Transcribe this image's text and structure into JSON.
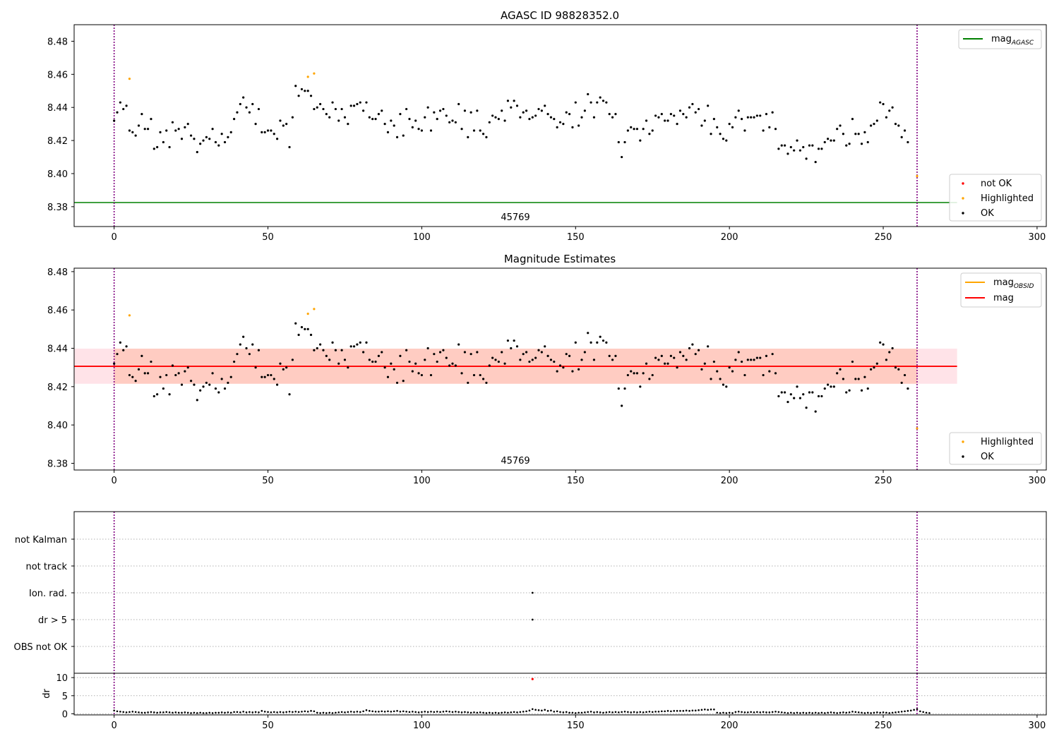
{
  "figure": {
    "colors": {
      "ok": "#000000",
      "highlighted": "#ffa500",
      "not_ok": "#ff0000",
      "agasc_line": "#008000",
      "mag_line": "#ff0000",
      "obsid_line": "#ffa500",
      "band_outer": "#ffc0cb",
      "band_inner": "#ffa07a",
      "obs_boundary": "#800080",
      "grid": "#b0b0b0"
    }
  },
  "chart_data": [
    {
      "type": "scatter",
      "title": "AGASC ID 98828352.0",
      "xlabel": "",
      "ylabel": "",
      "xlim": [
        -13,
        303
      ],
      "ylim": [
        8.368,
        8.49
      ],
      "xticks": [
        0,
        50,
        100,
        150,
        200,
        250,
        300
      ],
      "yticks": [
        8.38,
        8.4,
        8.42,
        8.44,
        8.46,
        8.48
      ],
      "ytick_labels": [
        "8.38",
        "8.40",
        "8.42",
        "8.44",
        "8.46",
        "8.48"
      ],
      "obsid_boundaries": [
        0,
        261
      ],
      "obsid_label": "45769",
      "hlines": [
        {
          "name": "mag_AGASC",
          "y": 8.3825,
          "x_range": [
            -13,
            274
          ]
        }
      ],
      "legend_lines": [
        {
          "base": "mag",
          "sub": "AGASC",
          "color": "#008000"
        }
      ],
      "legend_points": [
        {
          "label": "not OK",
          "color": "#ff0000"
        },
        {
          "label": "Highlighted",
          "color": "#ffa500"
        },
        {
          "label": "OK",
          "color": "#000000"
        }
      ],
      "series": [
        {
          "name": "OK",
          "color": "#000000",
          "key": "ok_mags",
          "extra_x": [],
          "extra_y": []
        },
        {
          "name": "Highlighted",
          "color": "#ffa500",
          "key": null,
          "extra_x": [
            5,
            63,
            65,
            261
          ],
          "extra_y": [
            8.4573,
            8.4585,
            8.4605,
            8.3985
          ]
        }
      ]
    },
    {
      "type": "scatter",
      "title": "Magnitude Estimates",
      "xlabel": "",
      "ylabel": "",
      "xlim": [
        -13,
        303
      ],
      "ylim": [
        8.3765,
        8.4818
      ],
      "xticks": [
        0,
        50,
        100,
        150,
        200,
        250,
        300
      ],
      "yticks": [
        8.38,
        8.4,
        8.42,
        8.44,
        8.46,
        8.48
      ],
      "ytick_labels": [
        "8.38",
        "8.40",
        "8.42",
        "8.44",
        "8.46",
        "8.48"
      ],
      "obsid_boundaries": [
        0,
        261
      ],
      "obsid_label": "45769",
      "hlines": [
        {
          "name": "mag",
          "y": 8.4306,
          "x_range": [
            -13,
            274
          ]
        }
      ],
      "bands": [
        {
          "name": "outer",
          "y_range": [
            8.4215,
            8.4398
          ],
          "x_range": [
            -13,
            274
          ]
        },
        {
          "name": "inner",
          "y_range": [
            8.4215,
            8.4398
          ],
          "x_range": [
            0,
            261
          ]
        }
      ],
      "legend_lines": [
        {
          "base": "mag",
          "sub": "OBSID",
          "color": "#ffa500"
        },
        {
          "base": "mag",
          "sub": "",
          "color": "#ff0000"
        }
      ],
      "legend_points": [
        {
          "label": "Highlighted",
          "color": "#ffa500"
        },
        {
          "label": "OK",
          "color": "#000000"
        }
      ],
      "series": [
        {
          "name": "OK",
          "color": "#000000",
          "key": "ok_mags",
          "extra_x": [],
          "extra_y": []
        },
        {
          "name": "Highlighted",
          "color": "#ffa500",
          "key": null,
          "extra_x": [
            5,
            63,
            65,
            261
          ],
          "extra_y": [
            8.4572,
            8.458,
            8.4605,
            8.3982
          ]
        }
      ]
    },
    {
      "type": "scatter",
      "title": "",
      "xlim": [
        -13,
        303
      ],
      "categories": [
        "not Kalman",
        "not track",
        "Ion. rad.",
        "dr > 5",
        "OBS not OK"
      ],
      "flag_points": [
        {
          "category": "Ion. rad.",
          "x": 136
        },
        {
          "category": "dr > 5",
          "x": 136
        }
      ],
      "obsid_boundaries": [
        0,
        261
      ]
    },
    {
      "type": "scatter",
      "title": "",
      "xlabel": "",
      "ylabel": "dr",
      "xlim": [
        -13,
        303
      ],
      "ylim": [
        -0.3,
        11.2
      ],
      "xticks": [
        0,
        50,
        100,
        150,
        200,
        250,
        300
      ],
      "yticks": [
        0,
        5,
        10
      ],
      "ytick_labels": [
        "0",
        "5",
        "10"
      ],
      "obsid_boundaries": [
        0,
        261
      ],
      "outliers": [
        {
          "x": 136,
          "y": 9.6,
          "color": "#ff0000"
        }
      ]
    }
  ],
  "ok_mags": [
    8.432,
    8.437,
    8.443,
    8.439,
    8.441,
    8.426,
    8.425,
    8.423,
    8.429,
    8.436,
    8.427,
    8.427,
    8.433,
    8.415,
    8.416,
    8.425,
    8.419,
    8.426,
    8.416,
    8.431,
    8.426,
    8.427,
    8.421,
    8.428,
    8.43,
    8.423,
    8.421,
    8.413,
    8.418,
    8.42,
    8.422,
    8.421,
    8.427,
    8.419,
    8.417,
    8.424,
    8.419,
    8.422,
    8.425,
    8.433,
    8.437,
    8.442,
    8.446,
    8.44,
    8.437,
    8.442,
    8.43,
    8.439,
    8.425,
    8.425,
    8.426,
    8.426,
    8.424,
    8.421,
    8.432,
    8.429,
    8.43,
    8.416,
    8.434,
    8.453,
    8.447,
    8.451,
    8.45,
    8.45,
    8.447,
    8.439,
    8.44,
    8.442,
    8.439,
    8.436,
    8.434,
    8.443,
    8.439,
    8.432,
    8.439,
    8.434,
    8.43,
    8.441,
    8.441,
    8.442,
    8.443,
    8.438,
    8.443,
    8.434,
    8.433,
    8.433,
    8.436,
    8.438,
    8.43,
    8.425,
    8.432,
    8.429,
    8.422,
    8.436,
    8.423,
    8.439,
    8.433,
    8.428,
    8.432,
    8.427,
    8.426,
    8.434,
    8.44,
    8.426,
    8.437,
    8.433,
    8.438,
    8.439,
    8.435,
    8.431,
    8.432,
    8.431,
    8.442,
    8.427,
    8.438,
    8.422,
    8.437,
    8.426,
    8.438,
    8.426,
    8.424,
    8.422,
    8.431,
    8.435,
    8.434,
    8.433,
    8.438,
    8.432,
    8.444,
    8.44,
    8.444,
    8.441,
    8.434,
    8.437,
    8.438,
    8.433,
    8.434,
    8.435,
    8.439,
    8.438,
    8.441,
    8.436,
    8.434,
    8.433,
    8.428,
    8.431,
    8.43,
    8.437,
    8.436,
    8.428,
    8.443,
    8.429,
    8.434,
    8.438,
    8.448,
    8.443,
    8.434,
    8.443,
    8.446,
    8.444,
    8.443,
    8.436,
    8.434,
    8.436,
    8.419,
    8.41,
    8.419,
    8.426,
    8.428,
    8.427,
    8.427,
    8.42,
    8.427,
    8.432,
    8.424,
    8.426,
    8.435,
    8.434,
    8.436,
    8.432,
    8.432,
    8.436,
    8.435,
    8.43,
    8.438,
    8.436,
    8.434,
    8.44,
    8.442,
    8.437,
    8.439,
    8.429,
    8.432,
    8.441,
    8.424,
    8.433,
    8.428,
    8.424,
    8.421,
    8.42,
    8.43,
    8.428,
    8.434,
    8.438,
    8.433,
    8.426,
    8.434,
    8.434,
    8.434,
    8.435,
    8.435,
    8.426,
    8.436,
    8.428,
    8.437,
    8.427,
    8.415,
    8.417,
    8.417,
    8.412,
    8.416,
    8.414,
    8.42,
    8.414,
    8.416,
    8.409,
    8.417,
    8.417,
    8.407,
    8.415,
    8.415,
    8.419,
    8.421,
    8.42,
    8.42,
    8.427,
    8.429,
    8.424,
    8.417,
    8.418,
    8.433,
    8.424,
    8.424,
    8.418,
    8.425,
    8.419,
    8.429,
    8.43,
    8.432,
    8.443,
    8.442,
    8.434,
    8.438,
    8.44,
    8.43,
    8.429,
    8.422,
    8.426,
    8.419
  ],
  "dr_values": [
    0.9,
    0.7,
    0.6,
    0.5,
    0.4,
    0.5,
    0.6,
    0.5,
    0.4,
    0.3,
    0.3,
    0.4,
    0.5,
    0.4,
    0.3,
    0.4,
    0.4,
    0.5,
    0.4,
    0.3,
    0.4,
    0.3,
    0.3,
    0.4,
    0.3,
    0.2,
    0.3,
    0.2,
    0.3,
    0.2,
    0.2,
    0.3,
    0.2,
    0.3,
    0.3,
    0.4,
    0.3,
    0.4,
    0.3,
    0.5,
    0.5,
    0.4,
    0.6,
    0.4,
    0.5,
    0.4,
    0.5,
    0.4,
    0.8,
    0.6,
    0.5,
    0.4,
    0.5,
    0.4,
    0.5,
    0.4,
    0.5,
    0.6,
    0.5,
    0.6,
    0.5,
    0.6,
    0.7,
    0.6,
    0.8,
    0.7,
    0.3,
    0.2,
    0.3,
    0.2,
    0.3,
    0.2,
    0.3,
    0.4,
    0.5,
    0.4,
    0.5,
    0.6,
    0.5,
    0.6,
    0.5,
    0.7,
    1.0,
    0.8,
    0.7,
    0.6,
    0.6,
    0.7,
    0.6,
    0.7,
    0.6,
    0.7,
    0.8,
    0.6,
    0.7,
    0.6,
    0.5,
    0.6,
    0.5,
    0.4,
    0.5,
    0.6,
    0.5,
    0.6,
    0.5,
    0.6,
    0.5,
    0.6,
    0.7,
    0.6,
    0.5,
    0.6,
    0.5,
    0.4,
    0.5,
    0.4,
    0.3,
    0.4,
    0.3,
    0.4,
    0.3,
    0.2,
    0.3,
    0.2,
    0.3,
    0.2,
    0.3,
    0.4,
    0.3,
    0.4,
    0.5,
    0.4,
    0.5,
    0.6,
    0.7,
    0.9,
    1.3,
    1.1,
    1.0,
    0.9,
    1.1,
    0.8,
    0.9,
    0.6,
    0.7,
    0.5,
    0.4,
    0.5,
    0.3,
    0.3,
    0.2,
    0.3,
    0.3,
    0.4,
    0.5,
    0.6,
    0.4,
    0.5,
    0.4,
    0.3,
    0.4,
    0.5,
    0.4,
    0.5,
    0.4,
    0.5,
    0.6,
    0.5,
    0.4,
    0.5,
    0.4,
    0.5,
    0.4,
    0.5,
    0.6,
    0.5,
    0.6,
    0.6,
    0.7,
    0.7,
    0.8,
    0.7,
    0.8,
    0.8,
    0.8,
    0.8,
    0.9,
    0.8,
    0.9,
    0.9,
    1.0,
    1.1,
    1.2,
    1.1,
    1.2,
    1.2,
    0.3,
    0.2,
    0.3,
    0.2,
    0.3,
    0.2,
    0.5,
    0.6,
    0.5,
    0.4,
    0.4,
    0.5,
    0.4,
    0.5,
    0.4,
    0.5,
    0.4,
    0.4,
    0.5,
    0.6,
    0.5,
    0.4,
    0.3,
    0.2,
    0.3,
    0.2,
    0.3,
    0.2,
    0.3,
    0.2,
    0.3,
    0.2,
    0.3,
    0.2,
    0.3,
    0.2,
    0.3,
    0.4,
    0.3,
    0.2,
    0.3,
    0.4,
    0.3,
    0.4,
    0.6,
    0.5,
    0.4,
    0.3,
    0.2,
    0.3,
    0.2,
    0.3,
    0.4,
    0.3,
    0.4,
    0.3,
    0.2,
    0.3,
    0.4,
    0.5,
    0.6,
    0.7,
    0.8,
    0.9,
    1.1,
    1.3,
    0.7,
    0.5,
    0.3,
    0.2
  ]
}
